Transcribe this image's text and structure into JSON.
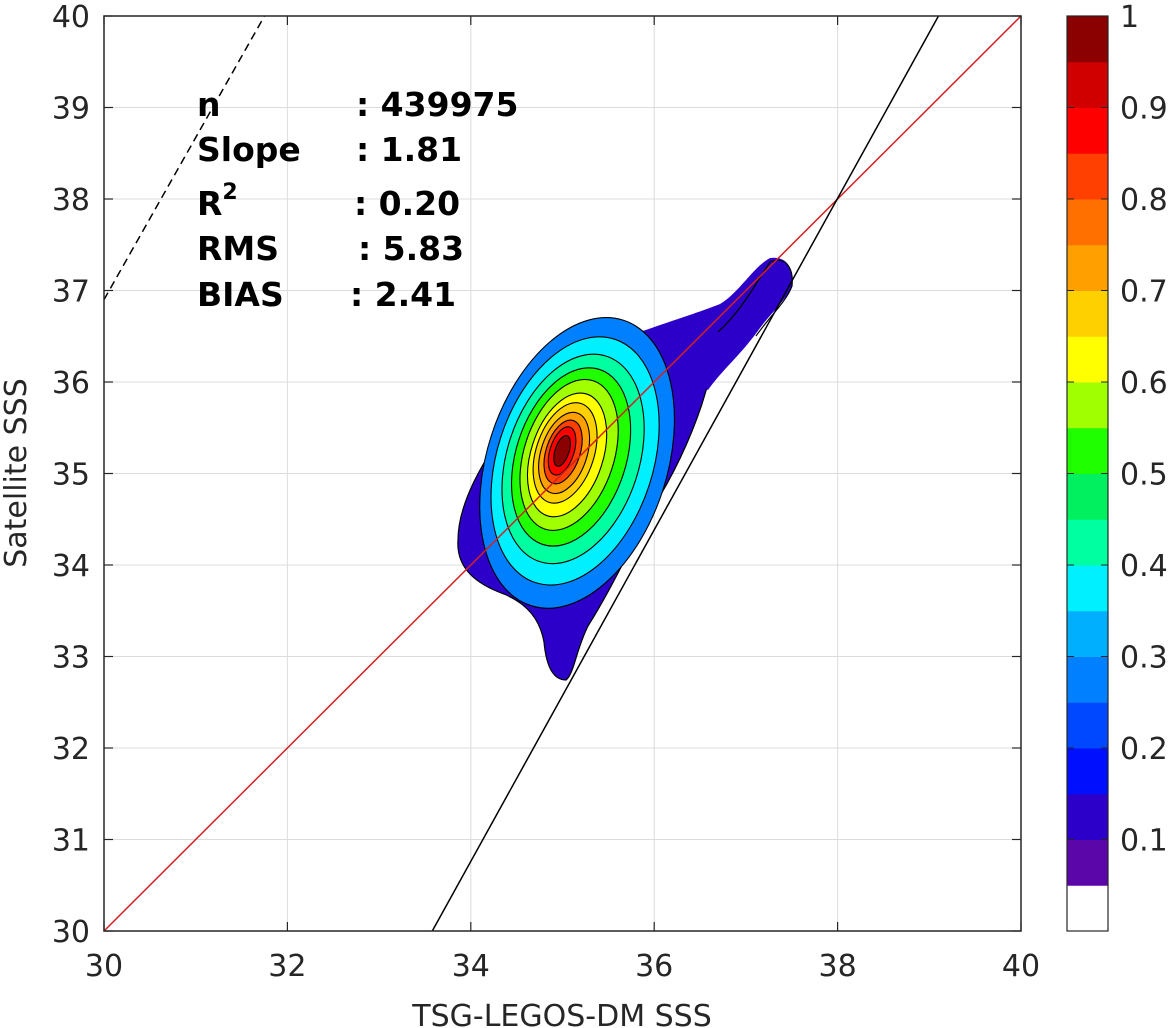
{
  "chart_data": {
    "type": "contour",
    "xlabel": "TSG-LEGOS-DM SSS",
    "ylabel": "Satellite SSS",
    "xlim": [
      30,
      40
    ],
    "ylim": [
      30,
      40
    ],
    "xticks": [
      "30",
      "32",
      "34",
      "36",
      "38",
      "40"
    ],
    "yticks": [
      "30",
      "31",
      "32",
      "33",
      "34",
      "35",
      "36",
      "37",
      "38",
      "39",
      "40"
    ],
    "grid": true,
    "colorbar": {
      "min": 0,
      "max": 1,
      "ticks": [
        "0.1",
        "0.2",
        "0.3",
        "0.4",
        "0.5",
        "0.6",
        "0.7",
        "0.8",
        "0.9",
        "1"
      ],
      "colors": [
        "#5a06a8",
        "#2c00c8",
        "#0010ff",
        "#0048ff",
        "#0080ff",
        "#00b0ff",
        "#00f0ff",
        "#00ffa0",
        "#00f060",
        "#20ff00",
        "#a0ff00",
        "#ffff00",
        "#ffd000",
        "#ffa000",
        "#ff7000",
        "#ff4000",
        "#ff0000",
        "#d00000",
        "#8b0000"
      ],
      "below_min_color": "#ffffff"
    },
    "density_center": {
      "x": 35.05,
      "y": 35.05
    },
    "lines": [
      {
        "name": "1:1",
        "points": [
          [
            30,
            30
          ],
          [
            40,
            40
          ]
        ],
        "color": "#d62020",
        "style": "solid"
      },
      {
        "name": "fit",
        "points": [
          [
            33.58,
            30
          ],
          [
            39.1,
            40
          ]
        ],
        "color": "#000000",
        "style": "solid"
      },
      {
        "name": "reference",
        "points": [
          [
            30,
            36.9
          ],
          [
            31.75,
            40
          ]
        ],
        "color": "#000000",
        "style": "dashed"
      }
    ],
    "stats": {
      "n_label": "n",
      "n_value": ": 439975",
      "slope_label": "Slope",
      "slope_value": ": 1.81",
      "r2_label": "R",
      "r2_sup": "2",
      "r2_value": ": 0.20",
      "rms_label": "RMS",
      "rms_value": ": 5.83",
      "bias_label": "BIAS",
      "bias_value": ": 2.41"
    }
  }
}
